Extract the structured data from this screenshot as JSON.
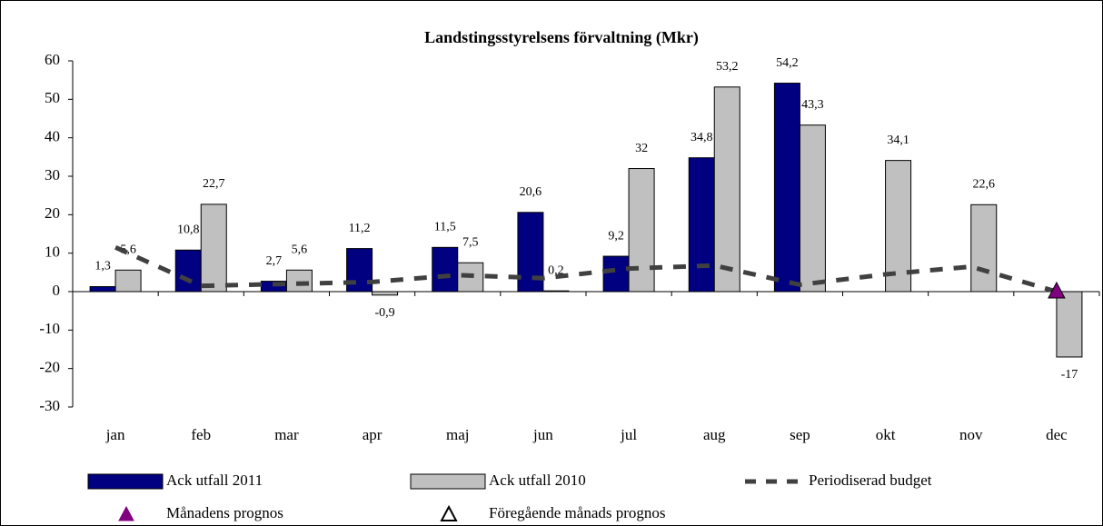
{
  "chart_data": {
    "type": "bar",
    "title": "Landstingsstyrelsens förvaltning (Mkr)",
    "categories": [
      "jan",
      "feb",
      "mar",
      "apr",
      "maj",
      "jun",
      "jul",
      "aug",
      "sep",
      "okt",
      "nov",
      "dec"
    ],
    "ylim": [
      -30,
      60
    ],
    "yticks": [
      -30,
      -20,
      -10,
      0,
      10,
      20,
      30,
      40,
      50,
      60
    ],
    "grid": false,
    "legend": "bottom",
    "series": [
      {
        "name": "Ack utfall 2011",
        "type": "bar",
        "color": "#000080",
        "values": [
          1.3,
          10.8,
          2.7,
          11.2,
          11.5,
          20.6,
          9.2,
          34.8,
          54.2,
          null,
          null,
          null
        ],
        "value_labels": [
          "1,3",
          "10,8",
          "2,7",
          "11,2",
          "11,5",
          "20,6",
          "9,2",
          "34,8",
          "54,2",
          null,
          null,
          null
        ]
      },
      {
        "name": "Ack utfall 2010",
        "type": "bar",
        "color": "#c0c0c0",
        "values": [
          5.6,
          22.7,
          5.6,
          -0.9,
          7.5,
          0.2,
          32,
          53.2,
          43.3,
          34.1,
          22.6,
          -17
        ],
        "value_labels": [
          "5,6",
          "22,7",
          "5,6",
          "-0,9",
          "7,5",
          "0,2",
          "32",
          "53,2",
          "43,3",
          "34,1",
          "22,6",
          "-17"
        ]
      },
      {
        "name": "Periodiserad budget",
        "type": "line",
        "linestyle": "dashed",
        "color": "#404040",
        "values": [
          11.5,
          1.5,
          2,
          2.5,
          4.3,
          3.5,
          6,
          6.8,
          1.8,
          4.5,
          6.5,
          0
        ]
      },
      {
        "name": "Månadens prognos",
        "type": "marker",
        "marker": "triangle",
        "filled": true,
        "color": "#800080",
        "values": [
          null,
          null,
          null,
          null,
          null,
          null,
          null,
          null,
          null,
          null,
          null,
          0
        ]
      },
      {
        "name": "Föregående månads prognos",
        "type": "marker",
        "marker": "triangle",
        "filled": false,
        "color": "#000000",
        "values": [
          null,
          null,
          null,
          null,
          null,
          null,
          null,
          null,
          null,
          null,
          null,
          null
        ]
      }
    ]
  }
}
